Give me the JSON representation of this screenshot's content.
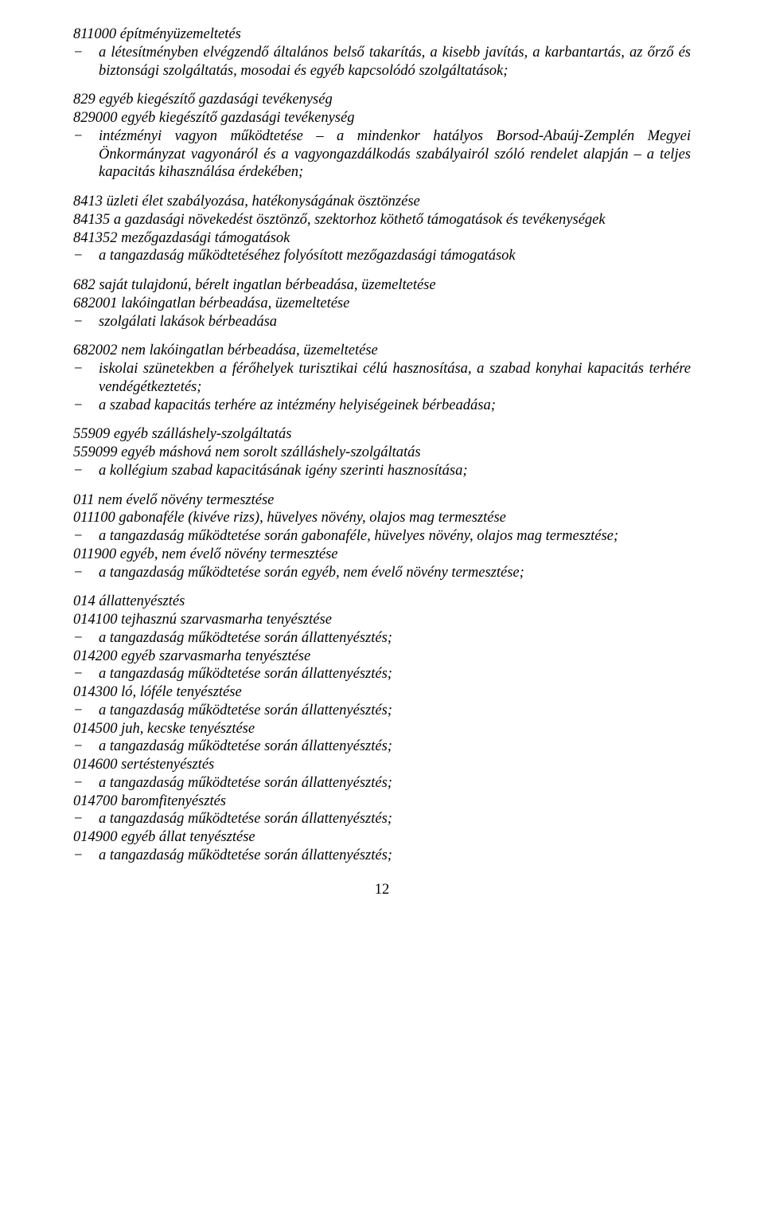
{
  "s811000": {
    "heading": "811000 építményüzemeltetés",
    "item1": "a létesítményben elvégzendő általános belső takarítás, a kisebb javítás, a karbantartás, az őrző és biztonsági szolgáltatás, mosodai és egyéb kapcsolódó szolgáltatások;"
  },
  "s829": {
    "heading": "829 egyéb kiegészítő gazdasági tevékenység",
    "sub": "829000 egyéb kiegészítő gazdasági tevékenység",
    "item1": "intézményi vagyon működtetése – a mindenkor hatályos Borsod-Abaúj-Zemplén Megyei Önkormányzat vagyonáról és a vagyongazdálkodás szabályairól szóló rendelet alapján – a teljes kapacitás kihasználása érdekében;"
  },
  "s8413": {
    "line1": "8413 üzleti élet szabályozása, hatékonyságának ösztönzése",
    "line2": "84135 a gazdasági növekedést ösztönző, szektorhoz köthető támogatások és tevékenységek",
    "line3": "841352 mezőgazdasági támogatások",
    "item1": "a tangazdaság működtetéséhez folyósított mezőgazdasági támogatások"
  },
  "s682": {
    "line1": "682 saját tulajdonú, bérelt ingatlan bérbeadása, üzemeltetése",
    "line2": "682001 lakóingatlan bérbeadása, üzemeltetése",
    "item1": "szolgálati lakások bérbeadása"
  },
  "s682002": {
    "heading": "682002 nem lakóingatlan bérbeadása, üzemeltetése",
    "item1": "iskolai szünetekben a férőhelyek turisztikai célú hasznosítása, a szabad konyhai kapacitás terhére vendégétkeztetés;",
    "item2": "a szabad kapacitás terhére az intézmény helyiségeinek bérbeadása;"
  },
  "s55909": {
    "line1": "55909 egyéb szálláshely-szolgáltatás",
    "line2": "559099 egyéb máshová nem sorolt szálláshely-szolgáltatás",
    "item1": "a kollégium szabad kapacitásának igény szerinti hasznosítása;"
  },
  "s011": {
    "line1": "011 nem évelő növény termesztése",
    "line2": "011100 gabonaféle (kivéve rizs), hüvelyes növény, olajos mag termesztése",
    "item1": "a tangazdaság működtetése során gabonaféle, hüvelyes növény, olajos mag termesztése;",
    "line3": "011900 egyéb, nem évelő növény termesztése",
    "item2": "a tangazdaság működtetése során egyéb, nem évelő növény termesztése;"
  },
  "s014": {
    "heading": "014 állattenyésztés",
    "l014100": "014100 tejhasznú szarvasmarha tenyésztése",
    "l014200": "014200 egyéb szarvasmarha tenyésztése",
    "l014300": "014300 ló, lóféle tenyésztése",
    "l014500": "014500 juh, kecske tenyésztése",
    "l014600": "014600 sertéstenyésztés",
    "l014700": "014700 baromfitenyésztés",
    "l014900": "014900 egyéb állat tenyésztése",
    "item": "a tangazdaság működtetése során állattenyésztés;"
  },
  "pageNumber": "12"
}
